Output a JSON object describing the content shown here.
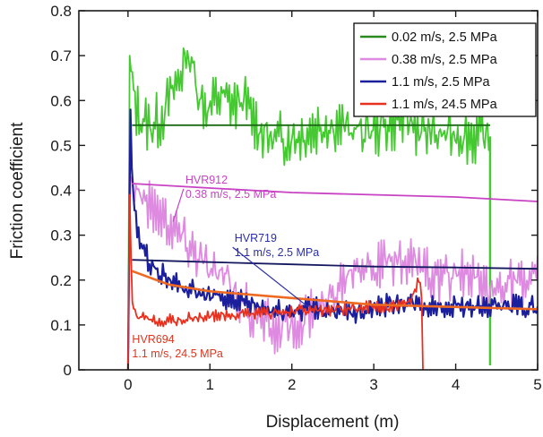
{
  "chart_data": {
    "type": "line",
    "xlabel": "Displacement (m)",
    "ylabel": "Friction coefficient",
    "xlim": [
      -0.6,
      5
    ],
    "ylim": [
      0,
      0.8
    ],
    "x_ticks": [
      0,
      1,
      2,
      3,
      4,
      5
    ],
    "y_ticks": [
      0,
      0.1,
      0.2,
      0.3,
      0.4,
      0.5,
      0.6,
      0.7,
      0.8
    ],
    "x_tick_labels": [
      "0",
      "1",
      "2",
      "3",
      "4",
      "5"
    ],
    "y_tick_labels": [
      "0",
      "0.1",
      "0.2",
      "0.3",
      "0.4",
      "0.5",
      "0.6",
      "0.7",
      "0.8"
    ],
    "grid": false,
    "legend_position": "top-right",
    "series": [
      {
        "name": "0.02 m/s, 2.5 MPa",
        "color": "#46c832",
        "fit_color": "#1a6b12",
        "end_x": 4.42,
        "points": [
          [
            0.0,
            0.0
          ],
          [
            0.02,
            0.7
          ],
          [
            0.06,
            0.62
          ],
          [
            0.1,
            0.58
          ],
          [
            0.2,
            0.55
          ],
          [
            0.3,
            0.545
          ],
          [
            0.4,
            0.56
          ],
          [
            0.5,
            0.6
          ],
          [
            0.6,
            0.64
          ],
          [
            0.7,
            0.69
          ],
          [
            0.75,
            0.71
          ],
          [
            0.8,
            0.66
          ],
          [
            0.9,
            0.6
          ],
          [
            1.0,
            0.58
          ],
          [
            1.1,
            0.61
          ],
          [
            1.2,
            0.6
          ],
          [
            1.3,
            0.59
          ],
          [
            1.4,
            0.6
          ],
          [
            1.5,
            0.57
          ],
          [
            1.6,
            0.54
          ],
          [
            1.7,
            0.52
          ],
          [
            1.8,
            0.51
          ],
          [
            2.0,
            0.52
          ],
          [
            2.2,
            0.53
          ],
          [
            2.4,
            0.55
          ],
          [
            2.6,
            0.54
          ],
          [
            2.8,
            0.53
          ],
          [
            3.0,
            0.535
          ],
          [
            3.2,
            0.55
          ],
          [
            3.4,
            0.56
          ],
          [
            3.6,
            0.53
          ],
          [
            3.8,
            0.52
          ],
          [
            4.0,
            0.53
          ],
          [
            4.2,
            0.52
          ],
          [
            4.4,
            0.515
          ]
        ],
        "fit": [
          [
            0.05,
            0.545
          ],
          [
            4.42,
            0.545
          ]
        ],
        "noise": 0.045
      },
      {
        "name": "0.38 m/s, 2.5 MPa",
        "color": "#dd8ae0",
        "fit_color": "#c843c4",
        "end_x": 5.0,
        "points": [
          [
            0.0,
            0.0
          ],
          [
            0.03,
            0.43
          ],
          [
            0.1,
            0.41
          ],
          [
            0.2,
            0.38
          ],
          [
            0.3,
            0.36
          ],
          [
            0.4,
            0.35
          ],
          [
            0.5,
            0.33
          ],
          [
            0.6,
            0.31
          ],
          [
            0.7,
            0.29
          ],
          [
            0.8,
            0.27
          ],
          [
            0.9,
            0.25
          ],
          [
            1.0,
            0.22
          ],
          [
            1.2,
            0.2
          ],
          [
            1.4,
            0.15
          ],
          [
            1.6,
            0.11
          ],
          [
            1.8,
            0.09
          ],
          [
            2.0,
            0.1
          ],
          [
            2.2,
            0.12
          ],
          [
            2.4,
            0.14
          ],
          [
            2.6,
            0.2
          ],
          [
            2.8,
            0.25
          ],
          [
            3.0,
            0.23
          ],
          [
            3.2,
            0.24
          ],
          [
            3.4,
            0.23
          ],
          [
            3.6,
            0.24
          ],
          [
            3.8,
            0.19
          ],
          [
            4.0,
            0.22
          ],
          [
            4.2,
            0.2
          ],
          [
            4.4,
            0.17
          ],
          [
            4.6,
            0.2
          ],
          [
            4.8,
            0.19
          ],
          [
            5.0,
            0.2
          ]
        ],
        "fit": [
          [
            0.05,
            0.415
          ],
          [
            1.0,
            0.405
          ],
          [
            2.0,
            0.395
          ],
          [
            3.0,
            0.39
          ],
          [
            4.0,
            0.385
          ],
          [
            5.0,
            0.375
          ]
        ],
        "noise": 0.04
      },
      {
        "name": "1.1 m/s, 2.5 MPa",
        "color": "#1c1f9c",
        "fit_color": "#14185e",
        "end_x": 5.0,
        "points": [
          [
            0.0,
            0.0
          ],
          [
            0.03,
            0.58
          ],
          [
            0.05,
            0.42
          ],
          [
            0.1,
            0.32
          ],
          [
            0.2,
            0.26
          ],
          [
            0.3,
            0.23
          ],
          [
            0.5,
            0.2
          ],
          [
            0.7,
            0.18
          ],
          [
            1.0,
            0.16
          ],
          [
            1.2,
            0.16
          ],
          [
            1.4,
            0.15
          ],
          [
            1.6,
            0.14
          ],
          [
            1.8,
            0.13
          ],
          [
            2.0,
            0.13
          ],
          [
            2.2,
            0.14
          ],
          [
            2.4,
            0.13
          ],
          [
            2.6,
            0.125
          ],
          [
            2.8,
            0.13
          ],
          [
            3.0,
            0.14
          ],
          [
            3.2,
            0.145
          ],
          [
            3.4,
            0.15
          ],
          [
            3.6,
            0.14
          ],
          [
            3.8,
            0.14
          ],
          [
            4.0,
            0.145
          ],
          [
            4.2,
            0.14
          ],
          [
            4.4,
            0.135
          ],
          [
            4.6,
            0.145
          ],
          [
            4.8,
            0.14
          ],
          [
            5.0,
            0.14
          ]
        ],
        "fit": [
          [
            0.05,
            0.245
          ],
          [
            1.0,
            0.24
          ],
          [
            2.0,
            0.235
          ],
          [
            3.0,
            0.23
          ],
          [
            4.0,
            0.228
          ],
          [
            5.0,
            0.225
          ]
        ],
        "noise": 0.018
      },
      {
        "name": "1.1 m/s, 24.5 MPa",
        "color": "#e8301e",
        "fit_color": "#ee6a22",
        "end_x": 3.6,
        "points": [
          [
            0.0,
            0.0
          ],
          [
            0.02,
            0.39
          ],
          [
            0.05,
            0.14
          ],
          [
            0.1,
            0.12
          ],
          [
            0.3,
            0.11
          ],
          [
            0.6,
            0.11
          ],
          [
            1.0,
            0.12
          ],
          [
            1.5,
            0.125
          ],
          [
            2.0,
            0.13
          ],
          [
            2.5,
            0.135
          ],
          [
            3.0,
            0.14
          ],
          [
            3.3,
            0.14
          ],
          [
            3.45,
            0.15
          ],
          [
            3.55,
            0.2
          ],
          [
            3.58,
            0.19
          ],
          [
            3.6,
            0.0
          ]
        ],
        "fit": [
          [
            0.05,
            0.22
          ],
          [
            0.5,
            0.19
          ],
          [
            1.0,
            0.175
          ],
          [
            2.0,
            0.16
          ],
          [
            3.0,
            0.145
          ],
          [
            4.0,
            0.14
          ],
          [
            5.0,
            0.135
          ]
        ],
        "noise": 0.01
      }
    ],
    "annotations": [
      {
        "label": "HVR912",
        "sub": "0.38 m/s, 2.5 MPa",
        "series": 1,
        "x": 0.7,
        "y": 0.415,
        "arrow_to": [
          0.55,
          0.33
        ],
        "color": "#c843c4"
      },
      {
        "label": "HVR719",
        "sub": "1.1 m/s, 2.5 MPa",
        "series": 2,
        "x": 1.3,
        "y": 0.285,
        "arrow_to": [
          2.2,
          0.14
        ],
        "color": "#2a2fa8"
      },
      {
        "label": "HVR694",
        "sub": "1.1 m/s, 24.5 MPa",
        "series": 3,
        "x": 0.05,
        "y": 0.06,
        "arrow_to": null,
        "color": "#e0341f"
      }
    ]
  }
}
